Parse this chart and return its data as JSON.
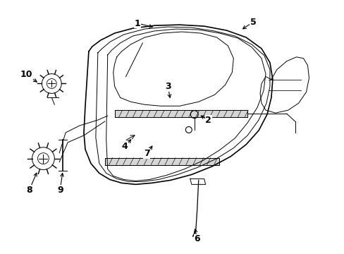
{
  "background_color": "#ffffff",
  "line_color": "#000000",
  "label_color": "#000000",
  "figsize": [
    4.89,
    3.6
  ],
  "dpi": 100,
  "arrow_color": "#000000"
}
